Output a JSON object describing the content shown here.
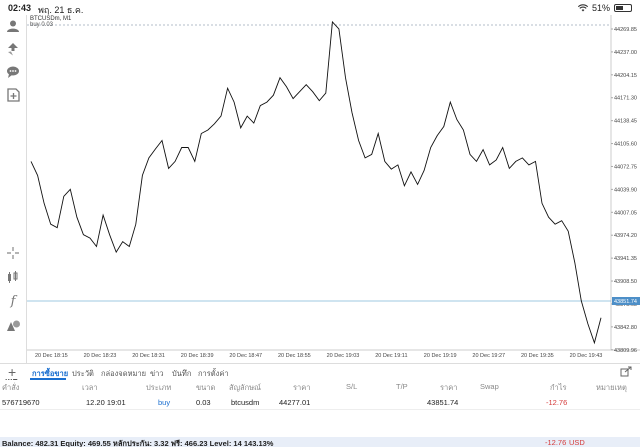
{
  "status_bar": {
    "time": "02:43",
    "date": "พฤ. 21 ธ.ค.",
    "battery": "51%",
    "battery_level": 0.51
  },
  "chart": {
    "symbol_title": "BTCUSDm, M1",
    "trade_label": "buy 0.03",
    "current_price_label": "43851.74",
    "line_color": "#111111",
    "price_line_color": "#7fb8d8",
    "entry_line_color": "#9aa8b8"
  },
  "chart_data": {
    "type": "line",
    "x_labels": [
      "20 Dec 18:15",
      "20 Dec 18:23",
      "20 Dec 18:31",
      "20 Dec 18:39",
      "20 Dec 18:47",
      "20 Dec 18:55",
      "20 Dec 19:03",
      "20 Dec 19:11",
      "20 Dec 19:19",
      "20 Dec 19:27",
      "20 Dec 19:35",
      "20 Dec 19:43"
    ],
    "y_ticks": [
      "44269.85",
      "44237.00",
      "44204.15",
      "44171.30",
      "44138.45",
      "44105.60",
      "44072.75",
      "44039.90",
      "44007.05",
      "43974.20",
      "43941.35",
      "43908.50",
      "43875.65",
      "43842.80",
      "43809.96"
    ],
    "ylim": [
      43809.96,
      44269.85
    ],
    "entry_price": 44277.01,
    "current_price": 43851.74,
    "values": [
      44080,
      44060,
      44020,
      43990,
      43985,
      44030,
      44040,
      44000,
      43975,
      43970,
      43958,
      44003,
      43975,
      43950,
      43965,
      43958,
      43990,
      44060,
      44085,
      44098,
      44110,
      44070,
      44080,
      44100,
      44100,
      44080,
      44120,
      44125,
      44134,
      44145,
      44185,
      44165,
      44128,
      44145,
      44135,
      44160,
      44165,
      44175,
      44200,
      44187,
      44170,
      44180,
      44190,
      44180,
      44167,
      44178,
      44280,
      44270,
      44200,
      44150,
      44110,
      44085,
      44090,
      44120,
      44080,
      44069,
      44075,
      44045,
      44065,
      44047,
      44067,
      44100,
      44117,
      44130,
      44165,
      44140,
      44125,
      44090,
      44080,
      44097,
      44075,
      44082,
      44100,
      44070,
      44080,
      44085,
      44075,
      44080,
      44020,
      44000,
      43990,
      43995,
      43980,
      43935,
      43880,
      43847,
      43820,
      43856
    ]
  },
  "sidebar": {
    "timeframe": "M1"
  },
  "tabs": {
    "items": [
      "การซื้อขาย",
      "ประวัติ",
      "กล่องจดหมาย",
      "ข่าว",
      "บันทึก",
      "การตั้งค่า"
    ]
  },
  "table": {
    "headers": {
      "ticket": "คำสั่ง",
      "time": "เวลา",
      "type": "ประเภท",
      "size": "ขนาด",
      "symbol": "สัญลักษณ์",
      "price": "ราคา",
      "sl": "S/L",
      "tp": "T/P",
      "price2": "ราคา",
      "swap": "Swap",
      "profit": "กำไร",
      "comment": "หมายเหตุ"
    },
    "row": {
      "ticket": "576719670",
      "time": "12.20 19:01",
      "type": "buy",
      "size": "0.03",
      "symbol": "btcusdm",
      "price": "44277.01",
      "price2": "43851.74",
      "profit": "-12.76"
    }
  },
  "balance": {
    "text": "Balance: 482.31 Equity: 469.55 หลักประกัน: 3.32 ฟรี: 466.23 Level: 14 143.13%",
    "profit": "-12.76",
    "currency": "USD"
  }
}
